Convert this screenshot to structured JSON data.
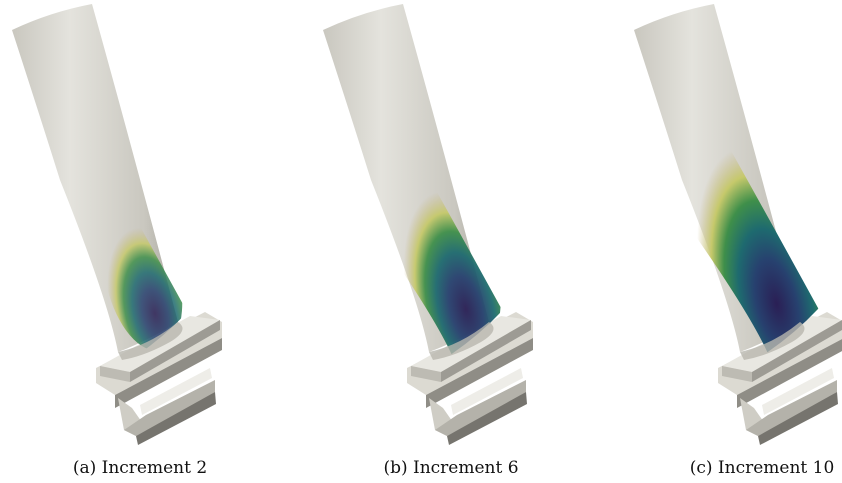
{
  "figure": {
    "panels": [
      {
        "tag": "(a)",
        "label": "Increment 2",
        "contour_extent": 0.3,
        "contour_max_intensity": 0.85
      },
      {
        "tag": "(b)",
        "label": "Increment 6",
        "contour_extent": 0.55,
        "contour_max_intensity": 0.95
      },
      {
        "tag": "(c)",
        "label": "Increment 10",
        "contour_extent": 0.85,
        "contour_max_intensity": 1.0
      }
    ],
    "colors": {
      "blade_light": "#e4e3dd",
      "blade_mid": "#c9c7bf",
      "blade_dark": "#a8a69e",
      "contour_outer": "#c8b98a",
      "contour_yellow": "#c6c96b",
      "contour_green": "#3f8f4a",
      "contour_teal": "#1e6a6f",
      "contour_blue": "#27416f",
      "contour_core": "#2a1f55"
    }
  }
}
